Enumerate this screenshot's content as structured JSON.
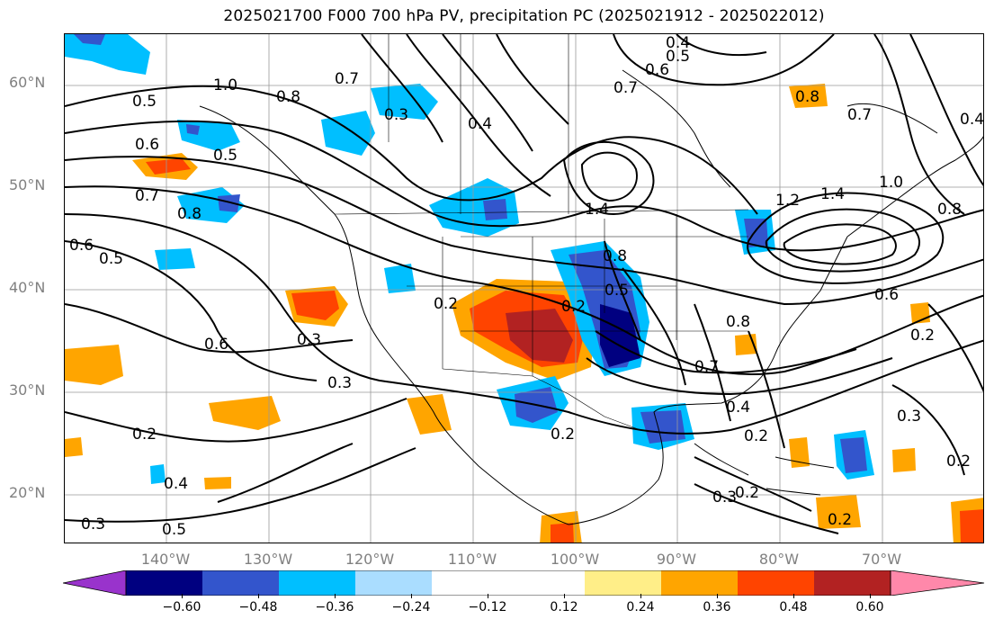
{
  "title": "2025021700 F000 700 hPa PV, precipitation PC (2025021912 - 2025022012)",
  "latitude_labels": [
    "60°N",
    "50°N",
    "40°N",
    "30°N",
    "20°N"
  ],
  "longitude_labels": [
    "140°W",
    "130°W",
    "120°W",
    "110°W",
    "100°W",
    "90°W",
    "80°W",
    "70°W"
  ],
  "colorbar": {
    "ticks": [
      "−0.60",
      "−0.48",
      "−0.36",
      "−0.24",
      "−0.12",
      "0.12",
      "0.24",
      "0.36",
      "0.48",
      "0.60"
    ],
    "colors": [
      "#9933cc",
      "#000080",
      "#3355cc",
      "#00bfff",
      "#aaddff",
      "#ffffff",
      "#ffee88",
      "#ffa500",
      "#ff4400",
      "#b22222",
      "#ff88aa"
    ]
  },
  "contour_labels": [
    "1.0",
    "0.5",
    "0.6",
    "0.7",
    "0.8",
    "0.3",
    "0.4",
    "0.2",
    "1.4",
    "1.2"
  ],
  "chart_data": {
    "type": "heatmap",
    "title": "2025021700 F000 700 hPa PV, precipitation PC (2025021912 - 2025022012)",
    "x_range": [
      "150°W",
      "60°W"
    ],
    "y_range": [
      "15°N",
      "65°N"
    ],
    "field_shaded": "precipitation PC",
    "field_contoured": "700 hPa PV",
    "levels": [
      -0.6,
      -0.48,
      -0.36,
      -0.24,
      -0.12,
      0.12,
      0.24,
      0.36,
      0.48,
      0.6
    ],
    "grid": true
  }
}
